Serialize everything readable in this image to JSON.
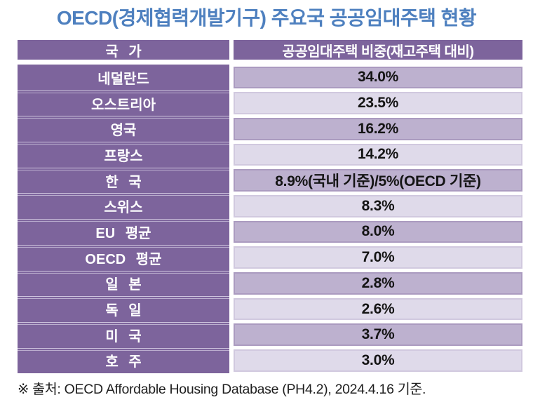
{
  "title": "OECD(경제협력개발기구) 주요국 공공임대주택 현황",
  "table": {
    "headers": {
      "country": "국 가",
      "value": "공공임대주택 비중(재고주택 대비)"
    },
    "rows": [
      {
        "country": "네덜란드",
        "value": "34.0%"
      },
      {
        "country": "오스트리아",
        "value": "23.5%"
      },
      {
        "country": "영국",
        "value": "16.2%"
      },
      {
        "country": "프랑스",
        "value": "14.2%"
      },
      {
        "country": "한 국",
        "value": "8.9%(국내 기준)/5%(OECD 기준)"
      },
      {
        "country": "스위스",
        "value": "8.3%"
      },
      {
        "country": "EU 평균",
        "value": "8.0%"
      },
      {
        "country": "OECD 평균",
        "value": "7.0%"
      },
      {
        "country": "일 본",
        "value": "2.8%"
      },
      {
        "country": "독 일",
        "value": "2.6%"
      },
      {
        "country": "미 국",
        "value": "3.7%"
      },
      {
        "country": "호 주",
        "value": "3.0%"
      }
    ]
  },
  "footnote": "※ 출처: OECD Affordable Housing Database (PH4.2), 2024.4.16 기준.",
  "colors": {
    "title_blue": "#4e80bf",
    "header_purple": "#7d649c",
    "country_column_purple": "#7d649c",
    "row_fill_dark": "#bdb1cf",
    "row_fill_light": "#dfdaea",
    "value_text": "#141414",
    "header_text": "#ffffff",
    "background": "#ffffff"
  }
}
